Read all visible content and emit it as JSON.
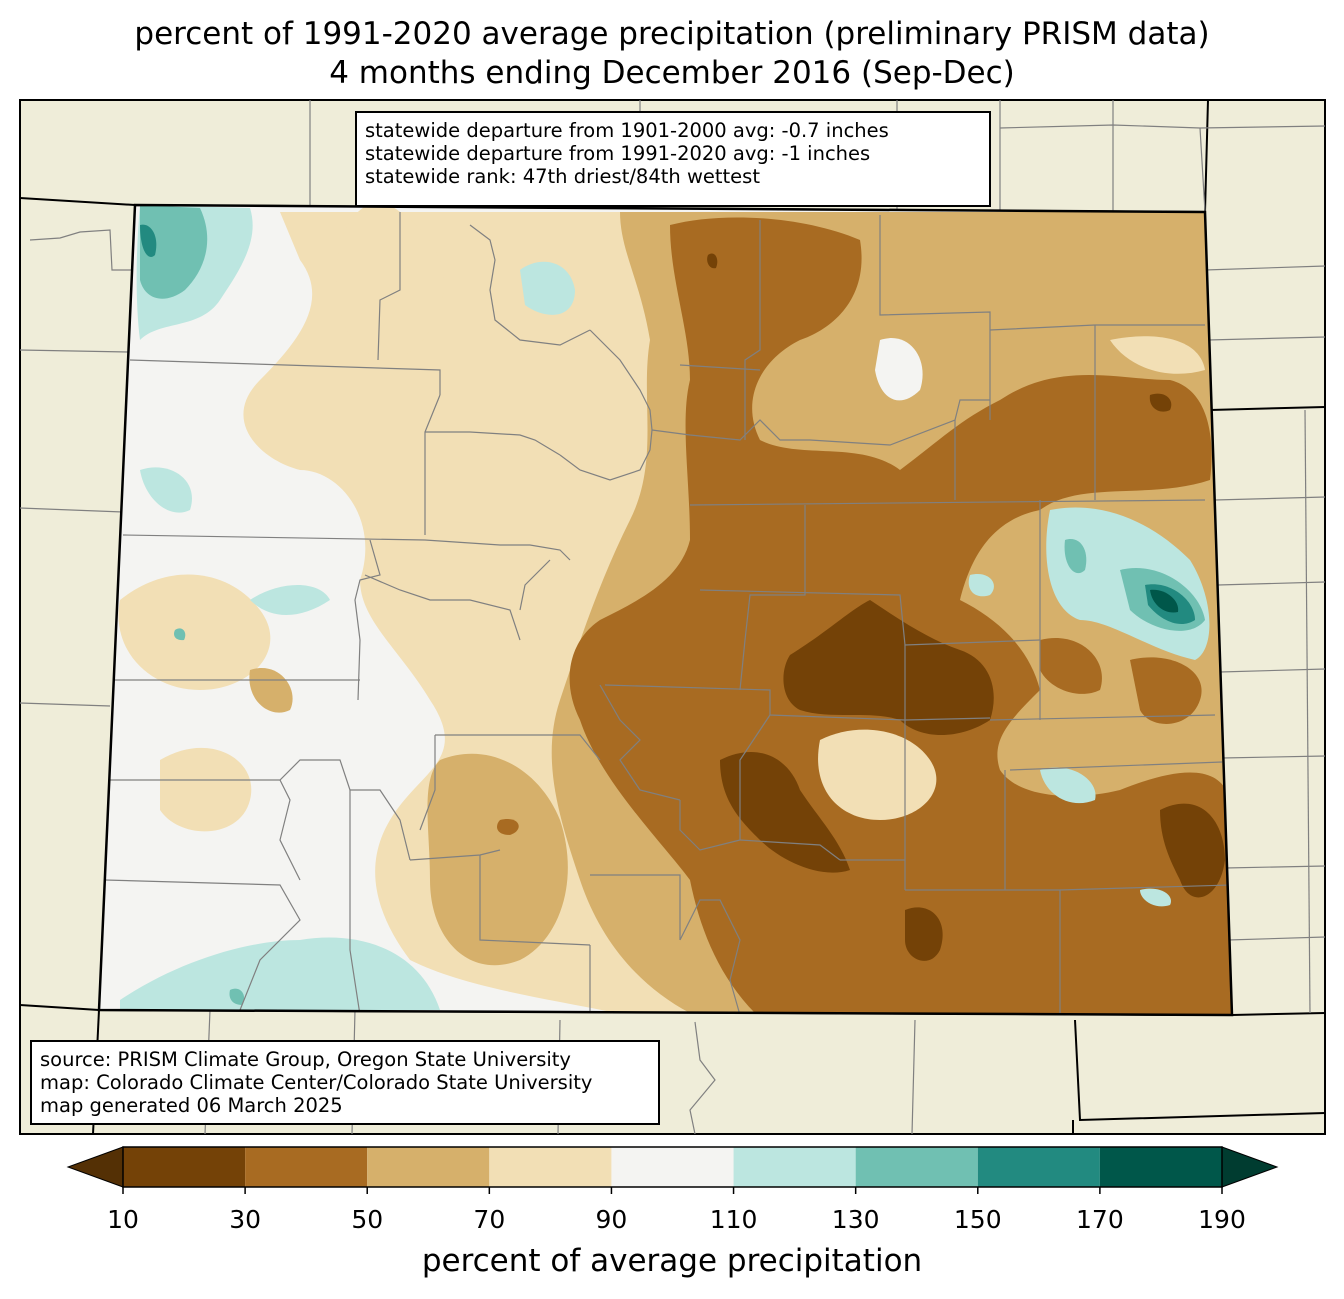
{
  "title": {
    "line1": "percent of 1991-2020 average precipitation (preliminary PRISM data)",
    "line2": "4 months ending December 2016 (Sep-Dec)"
  },
  "stats": {
    "line1": "statewide departure from 1901-2000 avg: -0.7 inches",
    "line2": "statewide departure from 1991-2020 avg: -1 inches",
    "line3": "statewide rank: 47th driest/84th wettest"
  },
  "source": {
    "line1": "source: PRISM Climate Group, Oregon State University",
    "line2": "map: Colorado Climate Center/Colorado State University",
    "line3": "map generated 06 March 2025"
  },
  "colorbar": {
    "label": "percent of average precipitation",
    "ticks": [
      "10",
      "30",
      "50",
      "70",
      "90",
      "110",
      "130",
      "150",
      "170",
      "190"
    ],
    "colors": [
      "#744207",
      "#a86b22",
      "#d6b06b",
      "#f2dfb5",
      "#f4f4f2",
      "#bce6e0",
      "#70c0b2",
      "#228a80",
      "#00574a"
    ],
    "under_color": "#543005",
    "over_color": "#003c30"
  },
  "map_colors": {
    "background": "#efedd9",
    "state_border": "#000000",
    "county_border": "#808080"
  }
}
